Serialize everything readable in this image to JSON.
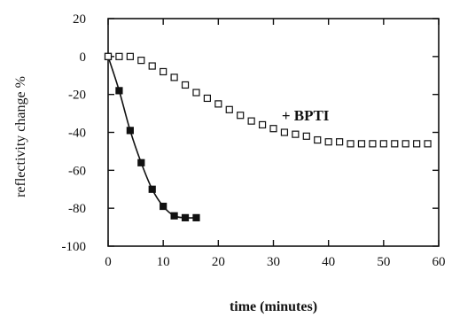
{
  "chart_data": {
    "type": "scatter",
    "title": "",
    "xlabel": "time (minutes)",
    "ylabel": "reflectivity change %",
    "xlim": [
      0,
      60
    ],
    "ylim": [
      -100,
      20
    ],
    "xticks": [
      0,
      10,
      20,
      30,
      40,
      50,
      60
    ],
    "yticks": [
      20,
      0,
      -20,
      -40,
      -60,
      -80,
      -100
    ],
    "grid": false,
    "series": [
      {
        "marker": "filled-square",
        "color": "#111111",
        "line": "smooth",
        "x": [
          0,
          2,
          4,
          6,
          8,
          10,
          12,
          14,
          16
        ],
        "y": [
          0,
          -18,
          -39,
          -56,
          -70,
          -79,
          -84,
          -85,
          -85
        ]
      },
      {
        "name": "+ BPTI",
        "marker": "open-square",
        "color": "#111111",
        "line": "none",
        "x": [
          0,
          2,
          4,
          6,
          8,
          10,
          12,
          14,
          16,
          18,
          20,
          22,
          24,
          26,
          28,
          30,
          32,
          34,
          36,
          38,
          40,
          42,
          44,
          46,
          48,
          50,
          52,
          54,
          56,
          58
        ],
        "y": [
          0,
          0,
          0,
          -2,
          -5,
          -8,
          -11,
          -15,
          -19,
          -22,
          -25,
          -28,
          -31,
          -34,
          -36,
          -38,
          -40,
          -41,
          -42,
          -44,
          -45,
          -45,
          -46,
          -46,
          -46,
          -46,
          -46,
          -46,
          -46,
          -46
        ]
      }
    ],
    "annotations": [
      {
        "text": "+ BPTI",
        "x": 31.5,
        "y": -31
      }
    ]
  }
}
